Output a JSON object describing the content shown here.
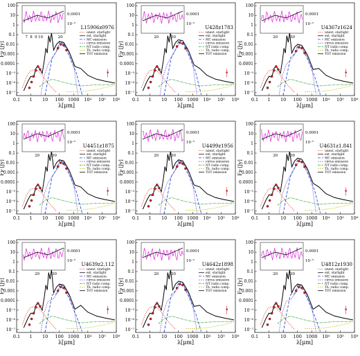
{
  "figure": {
    "ylabel": "Fν [Jy]",
    "xlabel": "λ[μm]",
    "xticks": [
      "0.1",
      "1",
      "10",
      "100",
      "1000",
      "10⁴",
      "10⁵",
      "10⁶"
    ],
    "yticks": [
      "100",
      "10",
      "1",
      "0.1",
      "0.01",
      "0.001",
      "0.0001",
      "10⁻⁵",
      "10⁻⁶",
      "10⁻⁷"
    ],
    "legend": [
      "unext. starlight",
      "ext. starlight",
      "MC emission",
      "cirrus emission",
      "NT radio comp.",
      "Th. radio comp.",
      "TOT emission"
    ],
    "colors": {
      "unext_starlight": "#e8503a",
      "ext_starlight": "#111111",
      "mc_emission": "#2a4fd8",
      "cirrus_emission": "#8a6fd0",
      "nt_radio": "#3ca83c",
      "th_radio": "#c8c832",
      "tot": "#000000",
      "data": "#d0202a",
      "inset_spectrum": "#e020e0"
    }
  },
  "chart_data": [
    {
      "type": "line",
      "title": "L15906z0976",
      "inset_ticks": [
        "7",
        "8",
        "9",
        "10",
        "20"
      ],
      "inset_right_ticks": [
        "0.0001",
        "10⁻⁵"
      ],
      "peak": [
        100,
        0.02
      ]
    },
    {
      "type": "line",
      "title": "U428z1783",
      "inset_ticks": [
        "20",
        "30"
      ],
      "inset_right_ticks": [
        "0.0001",
        "10⁻⁵"
      ],
      "peak": [
        100,
        0.03
      ]
    },
    {
      "type": "line",
      "title": "U4367z1624",
      "inset_ticks": [
        "20",
        "30"
      ],
      "inset_right_ticks": [
        "0.0001",
        "10⁻⁵"
      ],
      "peak": [
        100,
        0.01
      ]
    },
    {
      "type": "line",
      "title": "U4451z1875",
      "inset_ticks": [
        "20",
        "30"
      ],
      "inset_right_ticks": [
        "0.0001",
        "10⁻⁵"
      ],
      "peak": [
        100,
        0.02
      ]
    },
    {
      "type": "line",
      "title": "U4499z1956",
      "inset_ticks": [
        "20",
        "30"
      ],
      "inset_right_ticks": [
        "0.0001",
        "10⁻⁵"
      ],
      "peak": [
        100,
        0.02
      ]
    },
    {
      "type": "line",
      "title": "U4631z1.841",
      "inset_ticks": [
        "20",
        "30"
      ],
      "inset_right_ticks": [
        "0.0001",
        "10⁻⁵"
      ],
      "peak": [
        100,
        0.03
      ]
    },
    {
      "type": "line",
      "title": "U4639z2.112",
      "inset_ticks": [
        "20",
        "30"
      ],
      "inset_right_ticks": [
        "0.0001",
        "10⁻⁵"
      ],
      "peak": [
        100,
        0.005
      ]
    },
    {
      "type": "line",
      "title": "U4642z1898",
      "inset_ticks": [
        "20",
        "30"
      ],
      "inset_right_ticks": [
        "0.0001",
        "10⁻⁵"
      ],
      "peak": [
        100,
        0.01
      ]
    },
    {
      "type": "line",
      "title": "U4812z1930",
      "inset_ticks": [
        "20",
        "30"
      ],
      "inset_right_ticks": [
        "0.0001",
        "10⁻⁵"
      ],
      "peak": [
        100,
        0.005
      ]
    }
  ]
}
